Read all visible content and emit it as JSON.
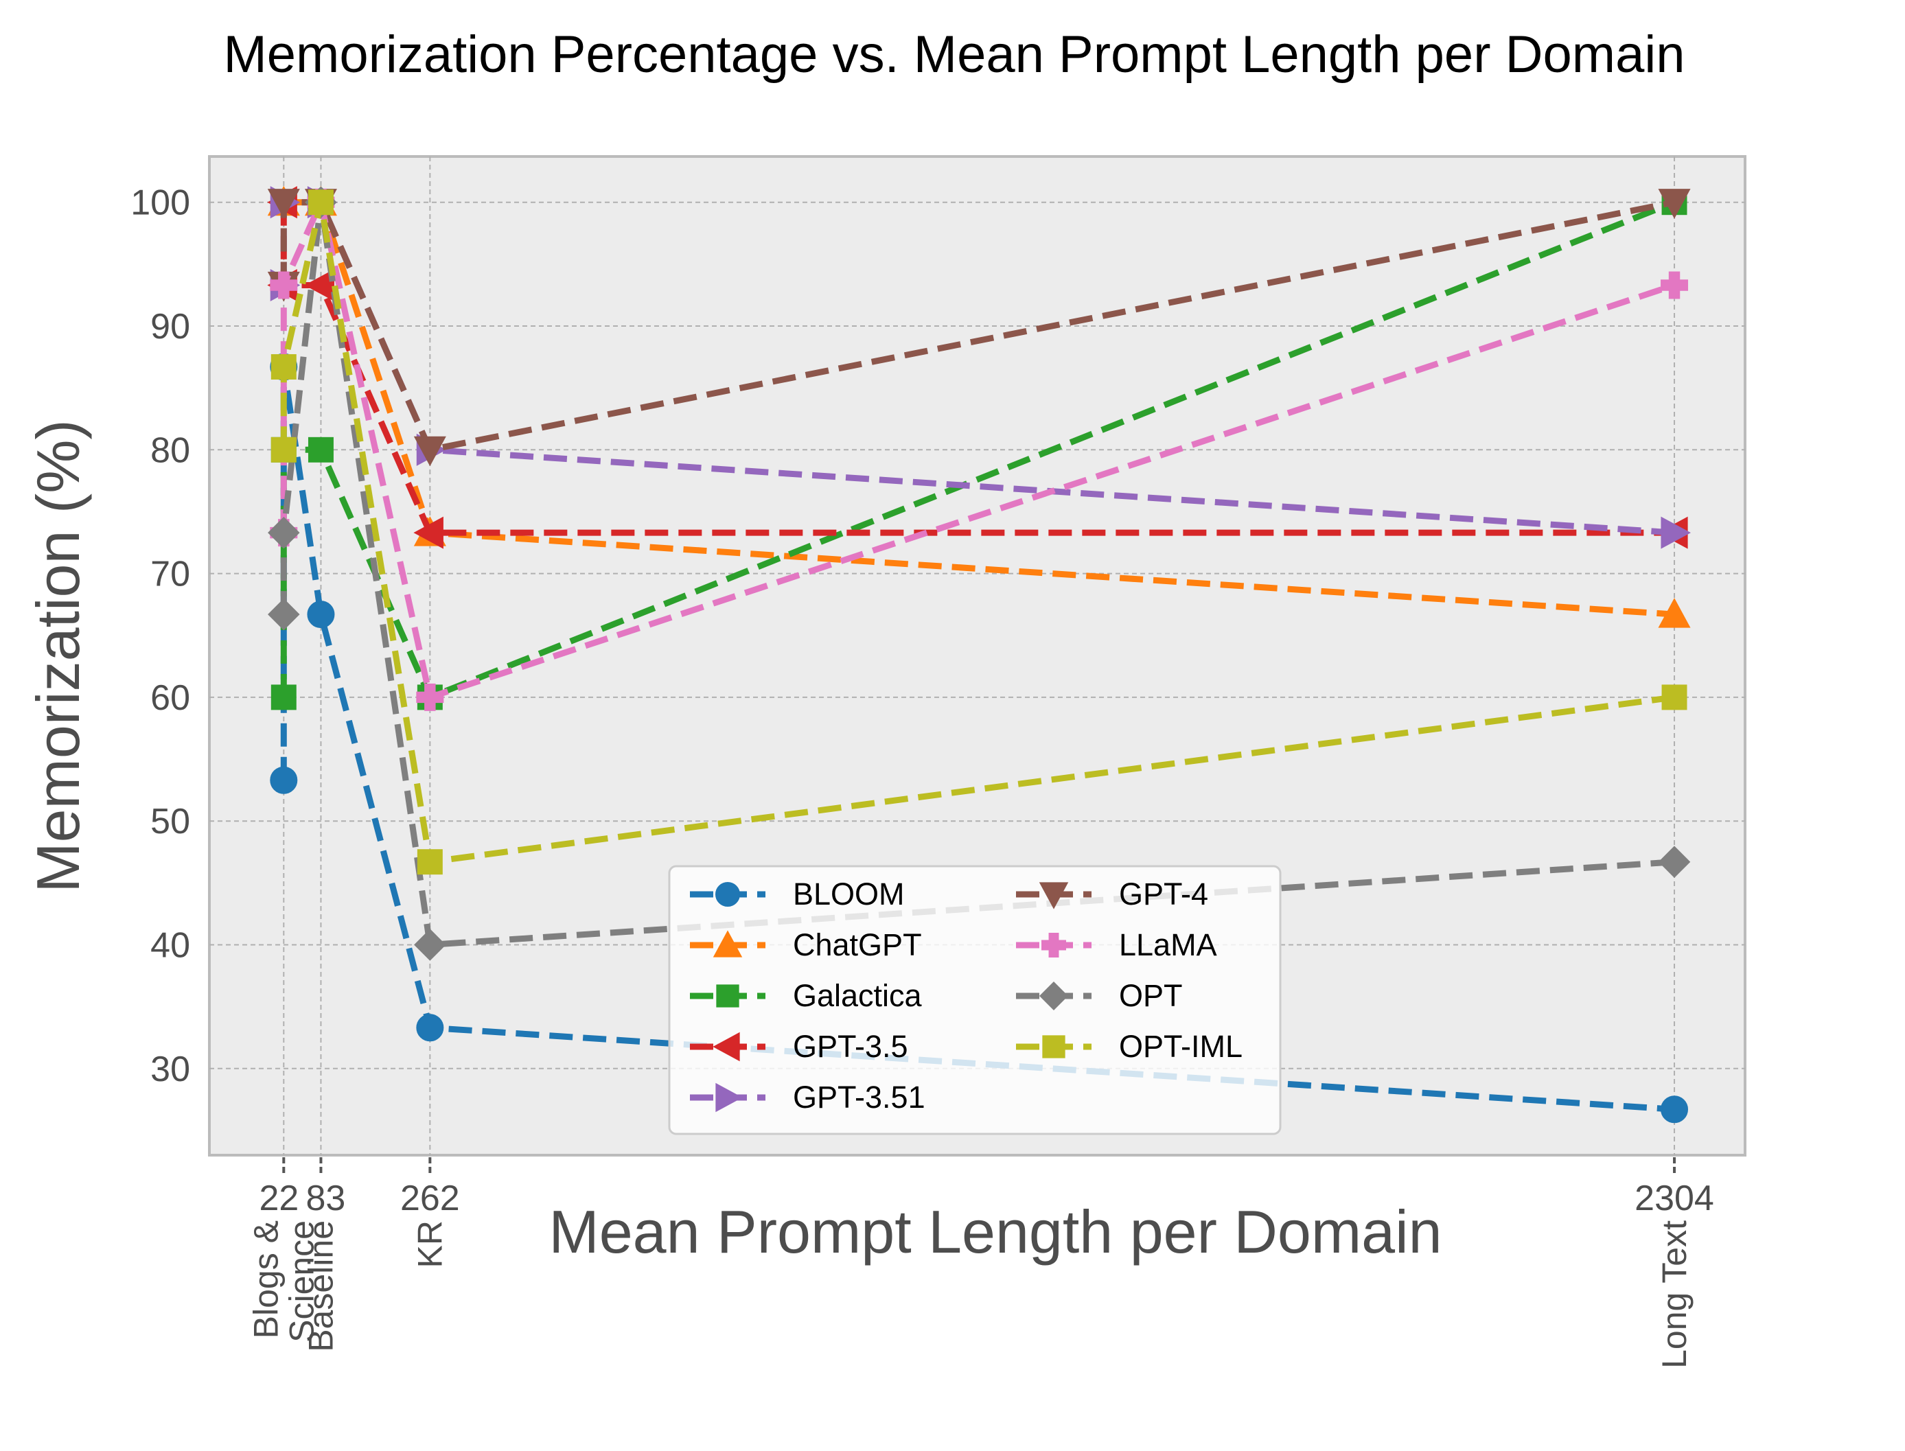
{
  "chart_data": {
    "type": "line",
    "title": "Memorization Percentage vs. Mean Prompt Length per Domain",
    "xlabel": "Mean Prompt Length per Domain",
    "ylabel": "Memorization (%)",
    "x": [
      22,
      83,
      262,
      2304
    ],
    "x_tick_labels": [
      "22",
      "83",
      "262",
      "2304"
    ],
    "x_category_labels": [
      {
        "x": 22,
        "lines": [
          "Blogs &",
          "Science"
        ]
      },
      {
        "x": 83,
        "lines": [
          "Baseline"
        ]
      },
      {
        "x": 262,
        "lines": [
          "KR"
        ]
      },
      {
        "x": 2304,
        "lines": [
          "Long Text"
        ]
      }
    ],
    "yticks": [
      30,
      40,
      50,
      60,
      70,
      80,
      90,
      100
    ],
    "xlim": [
      -100,
      2420
    ],
    "ylim": [
      23,
      103.7
    ],
    "grid": true,
    "grid_style": "dashed",
    "background": "#ececec",
    "legend_position": "lower-center",
    "legend_columns": 2,
    "series": [
      {
        "name": "BLOOM",
        "color": "#1f77b4",
        "marker": "circle",
        "points": [
          [
            22,
            53.3
          ],
          [
            22,
            86.7
          ],
          [
            83,
            66.7
          ],
          [
            262,
            33.3
          ],
          [
            2304,
            26.7
          ]
        ]
      },
      {
        "name": "ChatGPT",
        "color": "#ff7f0e",
        "marker": "triangle-up",
        "points": [
          [
            22,
            100
          ],
          [
            83,
            100
          ],
          [
            262,
            73.3
          ],
          [
            2304,
            66.7
          ]
        ]
      },
      {
        "name": "Galactica",
        "color": "#2ca02c",
        "marker": "square",
        "points": [
          [
            22,
            60
          ],
          [
            22,
            80
          ],
          [
            83,
            80
          ],
          [
            262,
            60
          ],
          [
            2304,
            100
          ]
        ]
      },
      {
        "name": "GPT-3.5",
        "color": "#d62728",
        "marker": "triangle-left",
        "points": [
          [
            22,
            100
          ],
          [
            22,
            93.3
          ],
          [
            83,
            93.3
          ],
          [
            262,
            73.3
          ],
          [
            2304,
            73.3
          ]
        ]
      },
      {
        "name": "GPT-3.51",
        "color": "#9467bd",
        "marker": "triangle-right",
        "points": [
          [
            22,
            93.3
          ],
          [
            22,
            100
          ],
          [
            83,
            100
          ],
          [
            262,
            80
          ],
          [
            2304,
            73.3
          ]
        ]
      },
      {
        "name": "GPT-4",
        "color": "#8c564b",
        "marker": "triangle-down",
        "points": [
          [
            22,
            93.3
          ],
          [
            22,
            100
          ],
          [
            83,
            100
          ],
          [
            262,
            80
          ],
          [
            2304,
            100
          ]
        ]
      },
      {
        "name": "LLaMA",
        "color": "#e377c2",
        "marker": "plus",
        "points": [
          [
            22,
            73.3
          ],
          [
            22,
            93.3
          ],
          [
            83,
            100
          ],
          [
            262,
            60
          ],
          [
            2304,
            93.3
          ]
        ]
      },
      {
        "name": "OPT",
        "color": "#7f7f7f",
        "marker": "diamond",
        "points": [
          [
            22,
            66.7
          ],
          [
            22,
            73.3
          ],
          [
            83,
            100
          ],
          [
            262,
            40
          ],
          [
            2304,
            46.7
          ]
        ]
      },
      {
        "name": "OPT-IML",
        "color": "#bcbd22",
        "marker": "square",
        "points": [
          [
            22,
            80
          ],
          [
            22,
            86.7
          ],
          [
            83,
            100
          ],
          [
            262,
            46.7
          ],
          [
            2304,
            60
          ]
        ]
      }
    ]
  }
}
